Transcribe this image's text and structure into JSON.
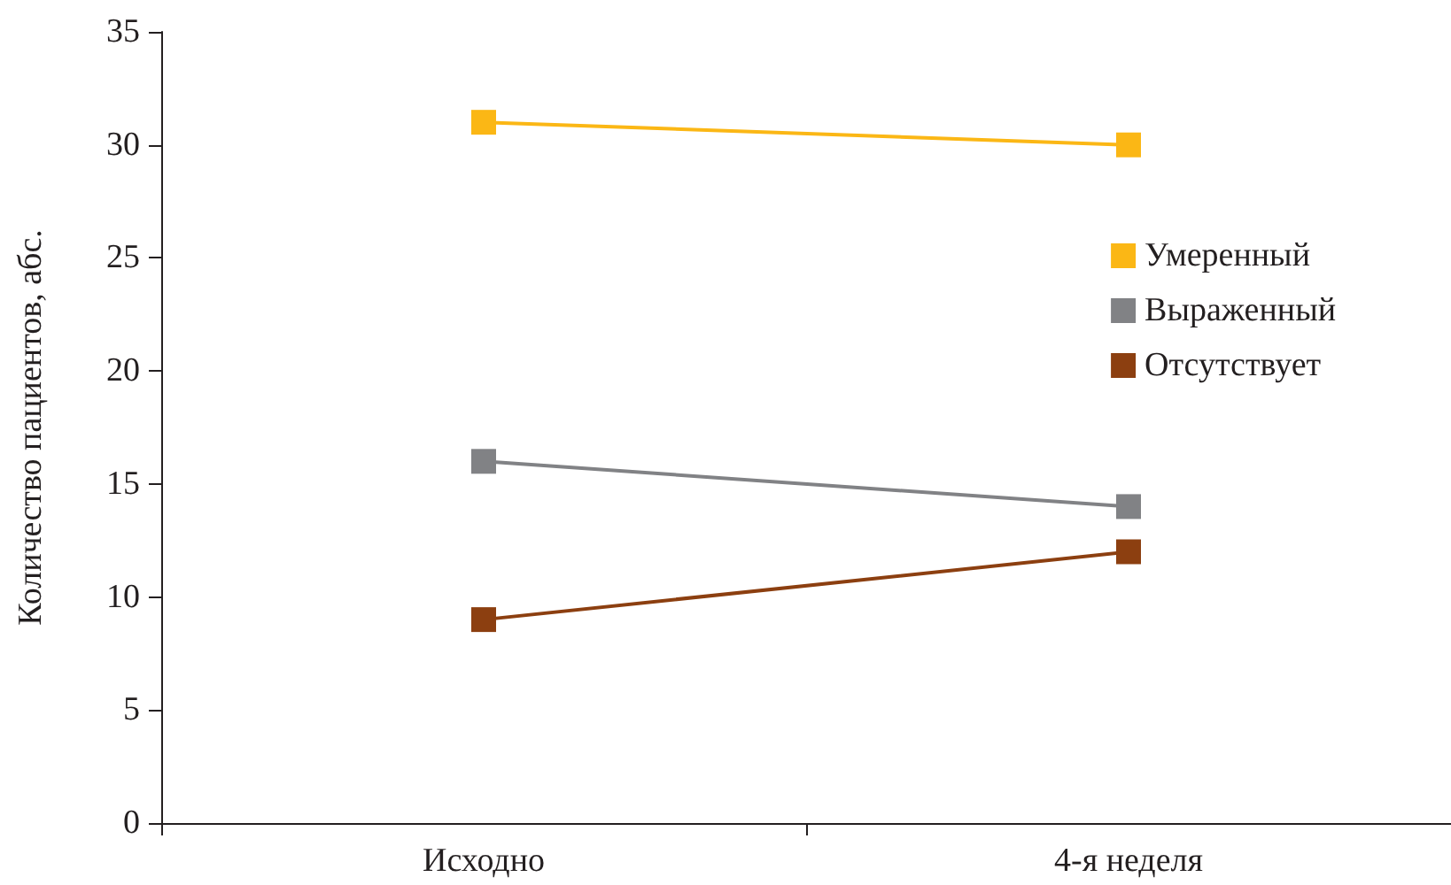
{
  "chart_data": {
    "type": "line",
    "ylabel": "Количество пациентов, абс.",
    "categories": [
      "Исходно",
      "4-я неделя"
    ],
    "series": [
      {
        "name": "Умеренный",
        "color": "#fbb715",
        "values": [
          31,
          30
        ]
      },
      {
        "name": "Выраженный",
        "color": "#818285",
        "values": [
          16,
          14
        ]
      },
      {
        "name": "Отсутствует",
        "color": "#8c3f10",
        "values": [
          9,
          12
        ]
      }
    ],
    "ylim": [
      0,
      35
    ],
    "yticks": [
      0,
      5,
      10,
      15,
      20,
      25,
      30,
      35
    ],
    "grid": false,
    "legend": "right",
    "marker": "square",
    "line_style": "solid"
  }
}
